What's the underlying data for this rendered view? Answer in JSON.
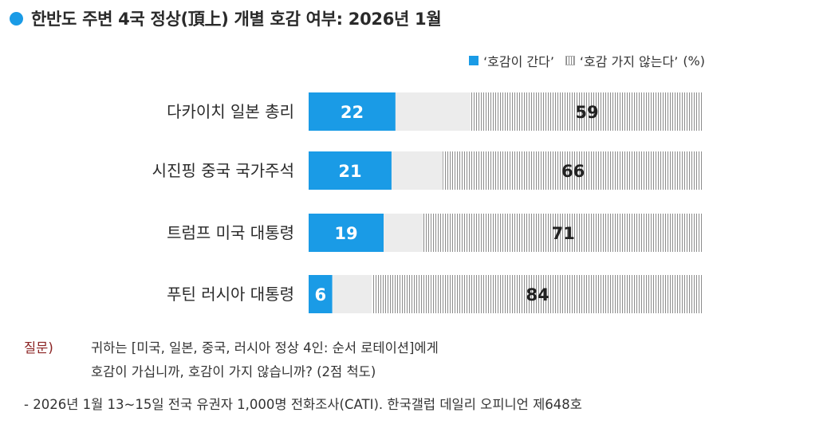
{
  "header": {
    "title": "한반도 주변 4국 정상(頂上) 개별 호감 여부: 2026년 1월",
    "accent_color": "#1a9be6"
  },
  "legend": {
    "items": [
      {
        "label": "‘호감이 간다’",
        "swatch": "solid-blue"
      },
      {
        "label": "‘호감 가지 않는다’",
        "swatch": "hatched-gray"
      }
    ],
    "unit": "(%)"
  },
  "chart_data": {
    "type": "bar",
    "orientation": "horizontal",
    "stacked": true,
    "categories": [
      "다카이치 일본 총리",
      "시진핑 중국 국가주석",
      "트럼프 미국 대통령",
      "푸틴 러시아 대통령"
    ],
    "series": [
      {
        "name": "‘호감이 간다’",
        "values": [
          22,
          21,
          19,
          6
        ],
        "color": "#1a9be6"
      },
      {
        "name": "(미표기)",
        "values": [
          19,
          13,
          10,
          10
        ],
        "color": "#ececec"
      },
      {
        "name": "‘호감 가지 않는다’",
        "values": [
          59,
          66,
          71,
          84
        ],
        "color": "hatched-gray"
      }
    ],
    "xlim": [
      0,
      100
    ],
    "grid": false,
    "legend_position": "top-right"
  },
  "notes": {
    "question_label": "질문)",
    "question_line1": "귀하는 [미국, 일본, 중국, 러시아 정상 4인: 순서 로테이션]에게",
    "question_line2": "호감이 가십니까, 호감이 가지 않습니까? (2점 척도)",
    "source": "- 2026년 1월 13~15일 전국 유권자 1,000명 전화조사(CATI). 한국갤럽 데일리 오피니언 제648호"
  }
}
